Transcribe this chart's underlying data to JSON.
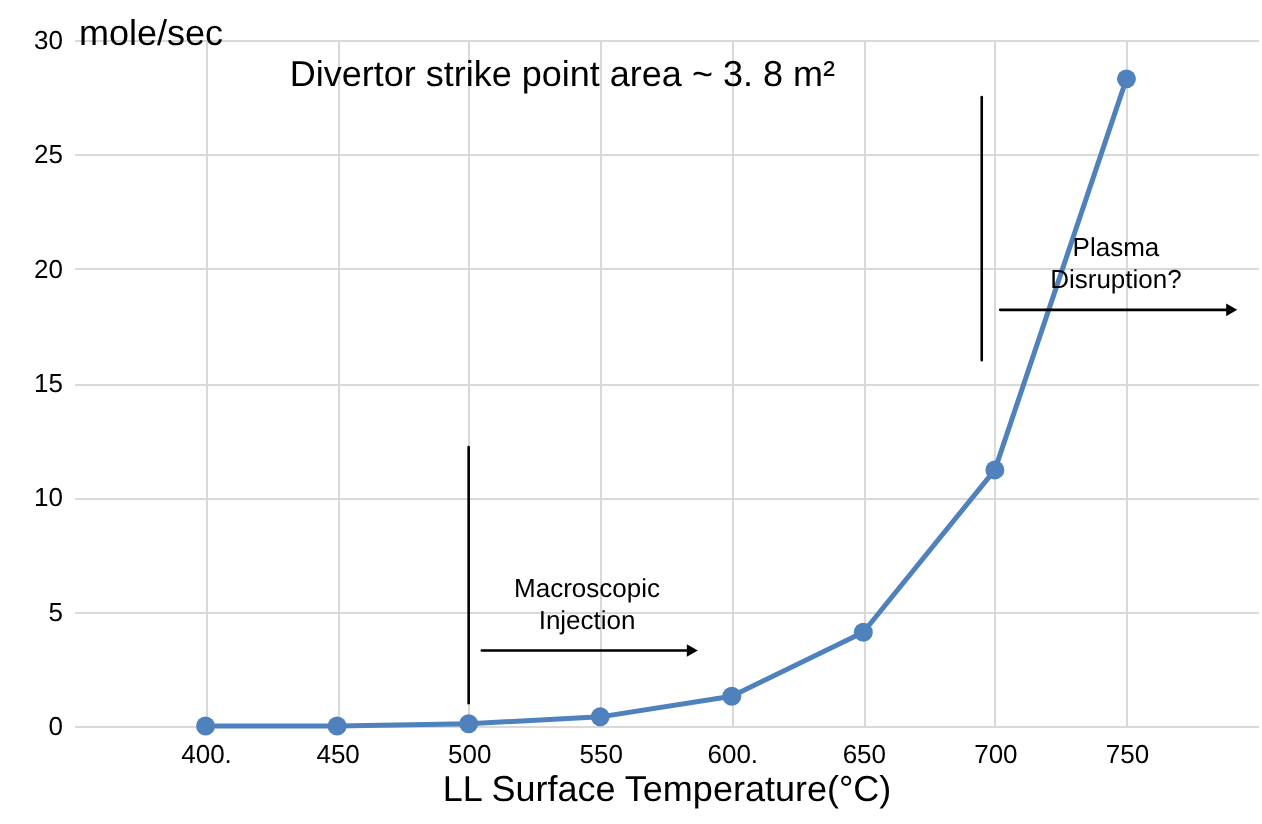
{
  "chart_data": {
    "type": "line",
    "title": "Divertor strike point area ~ 3. 8 m²",
    "xlabel": "LL Surface Temperature(°C)",
    "ylabel": "mole/sec",
    "x": [
      400,
      450,
      500,
      550,
      600,
      650,
      700,
      750
    ],
    "series": [
      {
        "color": "#4f81bd",
        "values": [
          0,
          0,
          0.1,
          0.4,
          1.3,
          4.1,
          11.2,
          28.3
        ],
        "marker": "circle"
      },
      {
        "type": "line",
        "color": "#000000",
        "x": [
          500,
          500
        ],
        "values": [
          1,
          12.2
        ],
        "marker": "none"
      },
      {
        "type": "line",
        "color": "#000000",
        "x": [
          695,
          695
        ],
        "values": [
          16,
          27.5
        ],
        "marker": "none"
      },
      {
        "type": "line",
        "color": "#000000",
        "x": [
          505,
          585
        ],
        "values": [
          3.3,
          3.3
        ],
        "marker": "triangle"
      },
      {
        "type": "line",
        "color": "#000000",
        "x": [
          702,
          790
        ],
        "values": [
          18.2,
          18.2
        ],
        "marker": "triangle"
      }
    ],
    "annotations": [
      "Macroscopic\nInjection",
      "Plasma\nDisruption?"
    ],
    "xlim": [
      350,
      800
    ],
    "xticks": [
      {
        "value": 400,
        "label": "400."
      },
      450,
      500,
      550,
      {
        "value": 600,
        "label": "600."
      },
      650,
      700,
      750
    ],
    "ylim": [
      0,
      30
    ],
    "yticks": [
      0,
      5,
      10,
      15,
      20,
      25,
      30
    ],
    "grid": true,
    "line_style": "solid"
  }
}
